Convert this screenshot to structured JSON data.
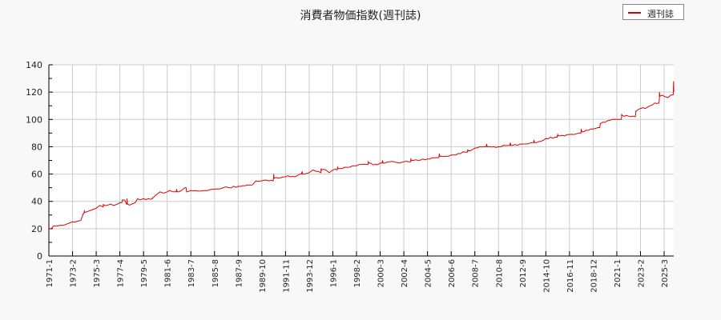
{
  "title": "消費者物価指数(週刊誌)",
  "legend": {
    "label": "週刊誌",
    "color": "#e00000"
  },
  "chart_data": {
    "type": "line",
    "title": "消費者物価指数(週刊誌)",
    "xlabel": "",
    "ylabel": "",
    "ylim": [
      0,
      140
    ],
    "yticks": [
      0,
      20,
      40,
      60,
      80,
      100,
      120,
      140
    ],
    "grid": true,
    "legend_position": "top-right",
    "categories": [
      "1971-1",
      "1973-2",
      "1975-3",
      "1977-4",
      "1979-5",
      "1981-6",
      "1983-7",
      "1985-8",
      "1987-9",
      "1989-10",
      "1991-11",
      "1993-12",
      "1996-1",
      "1998-2",
      "2000-3",
      "2002-4",
      "2004-5",
      "2006-6",
      "2008-7",
      "2010-8",
      "2012-9",
      "2014-10",
      "2016-11",
      "2018-12",
      "2021-1",
      "2023-2",
      "2025-3"
    ],
    "series": [
      {
        "name": "週刊誌",
        "color": "#e00000",
        "values": [
          20,
          25,
          35,
          39,
          42,
          47,
          48,
          49,
          51,
          55,
          58,
          61,
          63,
          66,
          68,
          69,
          71,
          74,
          79,
          80,
          82,
          86,
          89,
          93,
          100,
          108,
          117
        ]
      }
    ],
    "detail_points": [
      [
        0,
        20
      ],
      [
        0.1,
        20
      ],
      [
        0.2,
        22
      ],
      [
        0.35,
        22
      ],
      [
        0.5,
        22.5
      ],
      [
        0.7,
        23
      ],
      [
        0.85,
        24
      ],
      [
        1,
        25
      ],
      [
        1.2,
        25.5
      ],
      [
        1.35,
        26
      ],
      [
        1.45,
        31
      ],
      [
        1.55,
        32
      ],
      [
        1.7,
        33
      ],
      [
        1.85,
        34
      ],
      [
        2,
        35
      ],
      [
        2.15,
        37
      ],
      [
        2.3,
        36
      ],
      [
        2.45,
        37
      ],
      [
        2.6,
        38
      ],
      [
        2.75,
        37
      ],
      [
        2.9,
        38
      ],
      [
        3,
        39
      ],
      [
        3.1,
        40
      ],
      [
        3.2,
        41
      ],
      [
        3.3,
        38
      ],
      [
        3.5,
        38
      ],
      [
        3.65,
        39
      ],
      [
        3.75,
        42
      ],
      [
        3.85,
        41
      ],
      [
        4,
        42
      ],
      [
        4.2,
        42
      ],
      [
        4.4,
        43
      ],
      [
        4.55,
        45
      ],
      [
        4.7,
        47
      ],
      [
        4.85,
        46
      ],
      [
        5,
        47
      ],
      [
        5.1,
        48
      ],
      [
        5.25,
        47
      ],
      [
        5.4,
        49
      ],
      [
        5.5,
        47
      ],
      [
        5.6,
        48
      ],
      [
        5.75,
        50
      ],
      [
        5.85,
        47
      ],
      [
        6,
        48
      ],
      [
        6.3,
        47.5
      ],
      [
        6.6,
        48
      ],
      [
        7,
        49
      ],
      [
        7.3,
        49.5
      ],
      [
        7.6,
        50
      ],
      [
        8,
        51
      ],
      [
        8.3,
        51.5
      ],
      [
        8.6,
        52
      ],
      [
        8.75,
        55
      ],
      [
        9,
        55
      ],
      [
        9.3,
        55
      ],
      [
        9.5,
        58
      ],
      [
        9.7,
        57
      ],
      [
        10,
        58
      ],
      [
        10.2,
        58
      ],
      [
        10.4,
        58
      ],
      [
        10.6,
        60
      ],
      [
        10.8,
        60
      ],
      [
        11,
        61
      ],
      [
        11.15,
        63
      ],
      [
        11.3,
        62
      ],
      [
        11.5,
        61
      ],
      [
        11.7,
        63
      ],
      [
        11.85,
        61
      ],
      [
        12,
        63
      ],
      [
        12.3,
        64
      ],
      [
        12.5,
        65
      ],
      [
        12.7,
        65
      ],
      [
        12.85,
        66
      ],
      [
        13,
        66
      ],
      [
        13.2,
        67
      ],
      [
        13.4,
        67
      ],
      [
        13.6,
        68
      ],
      [
        13.8,
        67
      ],
      [
        14,
        68
      ],
      [
        14.2,
        68
      ],
      [
        14.4,
        69
      ],
      [
        14.6,
        69
      ],
      [
        14.8,
        68
      ],
      [
        15,
        69
      ],
      [
        15.2,
        69
      ],
      [
        15.4,
        70
      ],
      [
        15.6,
        70
      ],
      [
        15.8,
        71
      ],
      [
        16,
        71
      ],
      [
        16.2,
        72
      ],
      [
        16.4,
        72
      ],
      [
        16.6,
        73
      ],
      [
        16.8,
        73
      ],
      [
        17,
        74
      ],
      [
        17.2,
        74
      ],
      [
        17.4,
        75
      ],
      [
        17.6,
        76
      ],
      [
        17.8,
        77
      ],
      [
        18,
        79
      ],
      [
        18.2,
        80
      ],
      [
        18.4,
        80
      ],
      [
        18.6,
        80
      ],
      [
        18.8,
        80
      ],
      [
        19,
        80
      ],
      [
        19.2,
        81
      ],
      [
        19.4,
        81
      ],
      [
        19.6,
        81
      ],
      [
        19.8,
        81
      ],
      [
        20,
        82
      ],
      [
        20.2,
        82
      ],
      [
        20.4,
        83
      ],
      [
        20.6,
        83
      ],
      [
        20.8,
        84
      ],
      [
        21,
        86
      ],
      [
        21.2,
        87
      ],
      [
        21.4,
        87
      ],
      [
        21.6,
        88
      ],
      [
        21.8,
        88
      ],
      [
        22,
        89
      ],
      [
        22.2,
        89
      ],
      [
        22.4,
        90
      ],
      [
        22.6,
        91
      ],
      [
        22.8,
        92
      ],
      [
        23,
        93
      ],
      [
        23.2,
        94
      ],
      [
        23.4,
        98
      ],
      [
        23.6,
        99
      ],
      [
        23.8,
        100
      ],
      [
        24,
        100
      ],
      [
        24.2,
        101
      ],
      [
        24.4,
        103
      ],
      [
        24.6,
        102
      ],
      [
        24.8,
        104
      ],
      [
        25,
        108
      ],
      [
        25.2,
        108
      ],
      [
        25.4,
        110
      ],
      [
        25.6,
        112
      ],
      [
        25.8,
        115
      ],
      [
        26,
        117
      ],
      [
        26.15,
        116
      ],
      [
        26.3,
        118
      ],
      [
        26.4,
        128
      ],
      [
        26.5,
        120
      ],
      [
        26.6,
        122
      ],
      [
        26.75,
        122
      ]
    ],
    "spikes": [
      [
        1.5,
        33
      ],
      [
        2.3,
        38
      ],
      [
        3.1,
        41
      ],
      [
        3.3,
        42
      ],
      [
        4.4,
        43
      ],
      [
        5.4,
        49
      ],
      [
        5.8,
        50
      ],
      [
        9.5,
        60
      ],
      [
        10.7,
        62
      ],
      [
        11.5,
        64
      ],
      [
        12.2,
        65
      ],
      [
        13.5,
        69
      ],
      [
        14.1,
        70
      ],
      [
        15.3,
        71
      ],
      [
        16.5,
        75
      ],
      [
        17.7,
        78
      ],
      [
        18.5,
        82
      ],
      [
        19.5,
        83
      ],
      [
        20.5,
        85
      ],
      [
        21.5,
        89
      ],
      [
        22.5,
        93
      ],
      [
        23.3,
        97
      ],
      [
        24.2,
        104
      ],
      [
        24.8,
        106
      ],
      [
        25.8,
        120
      ],
      [
        26.4,
        128
      ]
    ]
  }
}
